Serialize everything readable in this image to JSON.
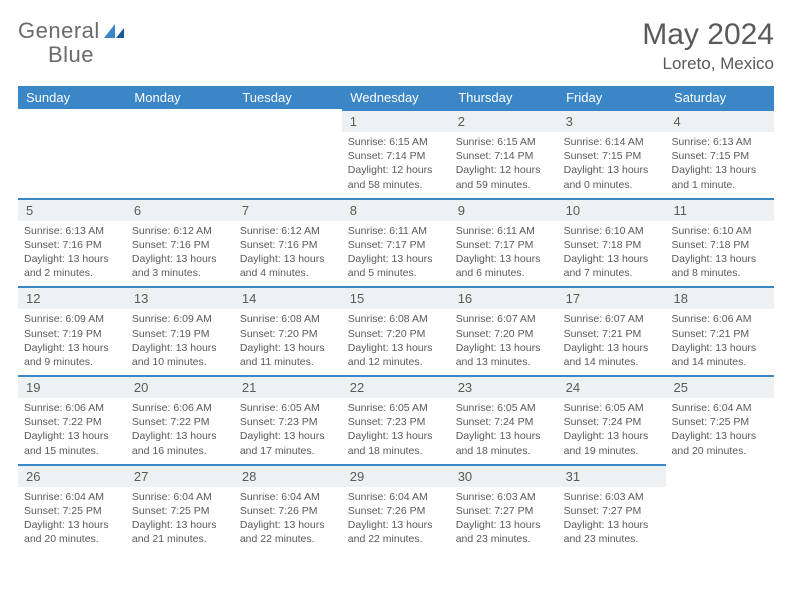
{
  "brand": {
    "name_a": "General",
    "name_b": "Blue",
    "accent": "#3b86c7",
    "text_color": "#6b6b6b"
  },
  "title": "May 2024",
  "location": "Loreto, Mexico",
  "colors": {
    "header_bg": "#3b86c7",
    "header_fg": "#ffffff",
    "daynum_bg": "#eef1f3",
    "border": "#3b86c7",
    "text": "#5a5a5a",
    "page_bg": "#ffffff"
  },
  "day_headers": [
    "Sunday",
    "Monday",
    "Tuesday",
    "Wednesday",
    "Thursday",
    "Friday",
    "Saturday"
  ],
  "weeks": [
    [
      {
        "n": "",
        "lines": [
          "",
          "",
          "",
          ""
        ]
      },
      {
        "n": "",
        "lines": [
          "",
          "",
          "",
          ""
        ]
      },
      {
        "n": "",
        "lines": [
          "",
          "",
          "",
          ""
        ]
      },
      {
        "n": "1",
        "lines": [
          "Sunrise: 6:15 AM",
          "Sunset: 7:14 PM",
          "Daylight: 12 hours",
          "and 58 minutes."
        ]
      },
      {
        "n": "2",
        "lines": [
          "Sunrise: 6:15 AM",
          "Sunset: 7:14 PM",
          "Daylight: 12 hours",
          "and 59 minutes."
        ]
      },
      {
        "n": "3",
        "lines": [
          "Sunrise: 6:14 AM",
          "Sunset: 7:15 PM",
          "Daylight: 13 hours",
          "and 0 minutes."
        ]
      },
      {
        "n": "4",
        "lines": [
          "Sunrise: 6:13 AM",
          "Sunset: 7:15 PM",
          "Daylight: 13 hours",
          "and 1 minute."
        ]
      }
    ],
    [
      {
        "n": "5",
        "lines": [
          "Sunrise: 6:13 AM",
          "Sunset: 7:16 PM",
          "Daylight: 13 hours",
          "and 2 minutes."
        ]
      },
      {
        "n": "6",
        "lines": [
          "Sunrise: 6:12 AM",
          "Sunset: 7:16 PM",
          "Daylight: 13 hours",
          "and 3 minutes."
        ]
      },
      {
        "n": "7",
        "lines": [
          "Sunrise: 6:12 AM",
          "Sunset: 7:16 PM",
          "Daylight: 13 hours",
          "and 4 minutes."
        ]
      },
      {
        "n": "8",
        "lines": [
          "Sunrise: 6:11 AM",
          "Sunset: 7:17 PM",
          "Daylight: 13 hours",
          "and 5 minutes."
        ]
      },
      {
        "n": "9",
        "lines": [
          "Sunrise: 6:11 AM",
          "Sunset: 7:17 PM",
          "Daylight: 13 hours",
          "and 6 minutes."
        ]
      },
      {
        "n": "10",
        "lines": [
          "Sunrise: 6:10 AM",
          "Sunset: 7:18 PM",
          "Daylight: 13 hours",
          "and 7 minutes."
        ]
      },
      {
        "n": "11",
        "lines": [
          "Sunrise: 6:10 AM",
          "Sunset: 7:18 PM",
          "Daylight: 13 hours",
          "and 8 minutes."
        ]
      }
    ],
    [
      {
        "n": "12",
        "lines": [
          "Sunrise: 6:09 AM",
          "Sunset: 7:19 PM",
          "Daylight: 13 hours",
          "and 9 minutes."
        ]
      },
      {
        "n": "13",
        "lines": [
          "Sunrise: 6:09 AM",
          "Sunset: 7:19 PM",
          "Daylight: 13 hours",
          "and 10 minutes."
        ]
      },
      {
        "n": "14",
        "lines": [
          "Sunrise: 6:08 AM",
          "Sunset: 7:20 PM",
          "Daylight: 13 hours",
          "and 11 minutes."
        ]
      },
      {
        "n": "15",
        "lines": [
          "Sunrise: 6:08 AM",
          "Sunset: 7:20 PM",
          "Daylight: 13 hours",
          "and 12 minutes."
        ]
      },
      {
        "n": "16",
        "lines": [
          "Sunrise: 6:07 AM",
          "Sunset: 7:20 PM",
          "Daylight: 13 hours",
          "and 13 minutes."
        ]
      },
      {
        "n": "17",
        "lines": [
          "Sunrise: 6:07 AM",
          "Sunset: 7:21 PM",
          "Daylight: 13 hours",
          "and 14 minutes."
        ]
      },
      {
        "n": "18",
        "lines": [
          "Sunrise: 6:06 AM",
          "Sunset: 7:21 PM",
          "Daylight: 13 hours",
          "and 14 minutes."
        ]
      }
    ],
    [
      {
        "n": "19",
        "lines": [
          "Sunrise: 6:06 AM",
          "Sunset: 7:22 PM",
          "Daylight: 13 hours",
          "and 15 minutes."
        ]
      },
      {
        "n": "20",
        "lines": [
          "Sunrise: 6:06 AM",
          "Sunset: 7:22 PM",
          "Daylight: 13 hours",
          "and 16 minutes."
        ]
      },
      {
        "n": "21",
        "lines": [
          "Sunrise: 6:05 AM",
          "Sunset: 7:23 PM",
          "Daylight: 13 hours",
          "and 17 minutes."
        ]
      },
      {
        "n": "22",
        "lines": [
          "Sunrise: 6:05 AM",
          "Sunset: 7:23 PM",
          "Daylight: 13 hours",
          "and 18 minutes."
        ]
      },
      {
        "n": "23",
        "lines": [
          "Sunrise: 6:05 AM",
          "Sunset: 7:24 PM",
          "Daylight: 13 hours",
          "and 18 minutes."
        ]
      },
      {
        "n": "24",
        "lines": [
          "Sunrise: 6:05 AM",
          "Sunset: 7:24 PM",
          "Daylight: 13 hours",
          "and 19 minutes."
        ]
      },
      {
        "n": "25",
        "lines": [
          "Sunrise: 6:04 AM",
          "Sunset: 7:25 PM",
          "Daylight: 13 hours",
          "and 20 minutes."
        ]
      }
    ],
    [
      {
        "n": "26",
        "lines": [
          "Sunrise: 6:04 AM",
          "Sunset: 7:25 PM",
          "Daylight: 13 hours",
          "and 20 minutes."
        ]
      },
      {
        "n": "27",
        "lines": [
          "Sunrise: 6:04 AM",
          "Sunset: 7:25 PM",
          "Daylight: 13 hours",
          "and 21 minutes."
        ]
      },
      {
        "n": "28",
        "lines": [
          "Sunrise: 6:04 AM",
          "Sunset: 7:26 PM",
          "Daylight: 13 hours",
          "and 22 minutes."
        ]
      },
      {
        "n": "29",
        "lines": [
          "Sunrise: 6:04 AM",
          "Sunset: 7:26 PM",
          "Daylight: 13 hours",
          "and 22 minutes."
        ]
      },
      {
        "n": "30",
        "lines": [
          "Sunrise: 6:03 AM",
          "Sunset: 7:27 PM",
          "Daylight: 13 hours",
          "and 23 minutes."
        ]
      },
      {
        "n": "31",
        "lines": [
          "Sunrise: 6:03 AM",
          "Sunset: 7:27 PM",
          "Daylight: 13 hours",
          "and 23 minutes."
        ]
      },
      {
        "n": "",
        "lines": [
          "",
          "",
          "",
          ""
        ]
      }
    ]
  ]
}
